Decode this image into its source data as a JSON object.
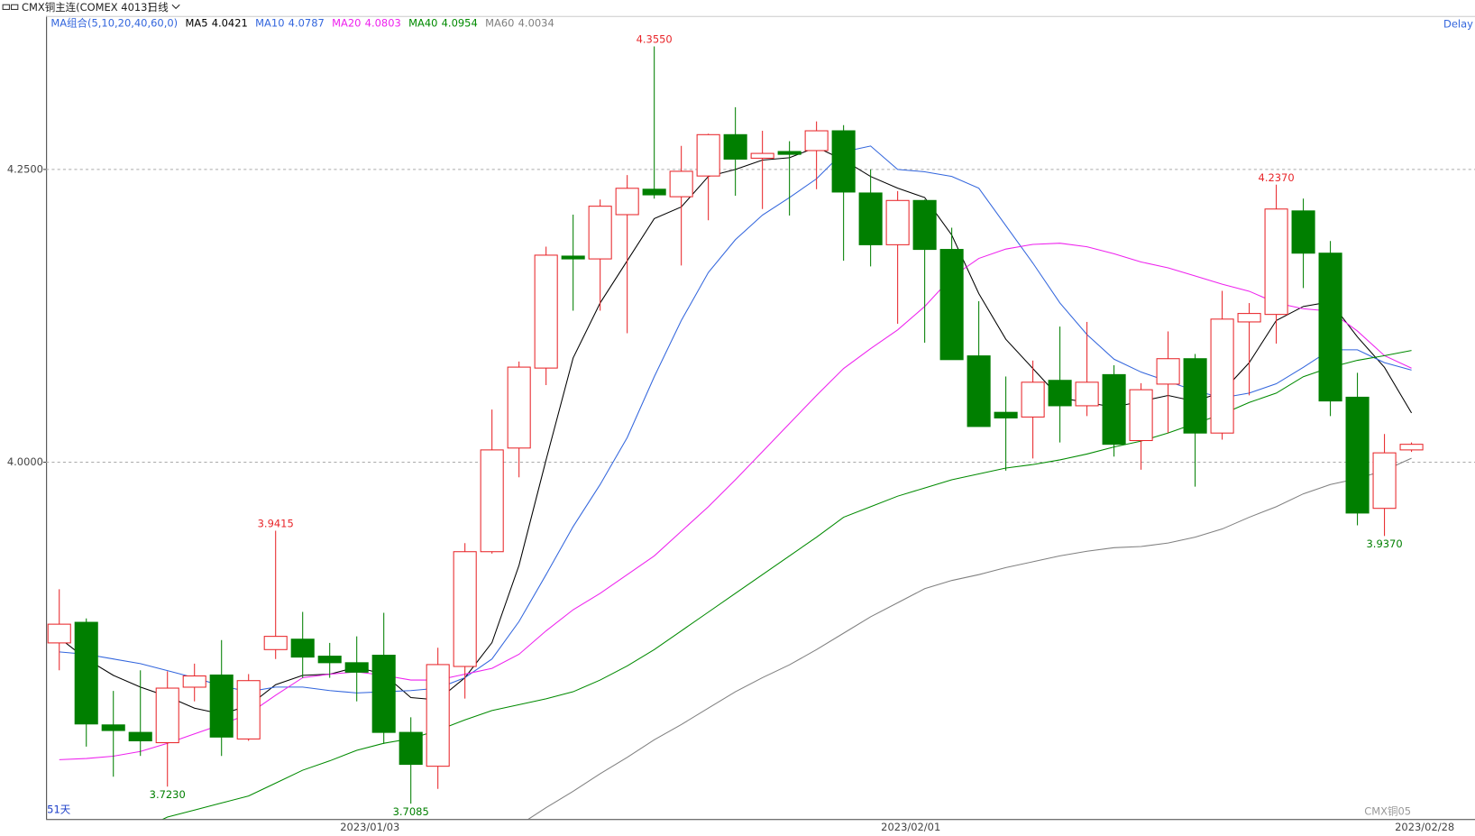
{
  "chart_data": {
    "type": "candlestick",
    "title": "CMX铜主连(COMEX 4013)",
    "period": "日线",
    "ma_label": "MA组合(5,10,20,40,60,0)",
    "day_count": "51天",
    "watermark": "CMX铜05",
    "delay": "Delay",
    "up_color": "#e8262a",
    "down_color": "#007f00",
    "categories": [
      null,
      null,
      null,
      null,
      null,
      null,
      null,
      null,
      null,
      null,
      null,
      "2023/01/03",
      null,
      null,
      null,
      null,
      null,
      null,
      null,
      null,
      null,
      null,
      null,
      null,
      null,
      null,
      null,
      null,
      null,
      null,
      null,
      "2023/02/01",
      null,
      null,
      null,
      null,
      null,
      null,
      null,
      null,
      null,
      null,
      null,
      null,
      null,
      null,
      null,
      null,
      null,
      null,
      "2023/02/28"
    ],
    "open": [
      3.8457,
      3.8633,
      3.7757,
      3.7693,
      3.7605,
      3.8079,
      3.8183,
      3.7637,
      3.84,
      3.8489,
      3.8344,
      3.8288,
      3.8352,
      3.7693,
      3.7404,
      3.8256,
      3.9236,
      4.0121,
      4.0804,
      4.176,
      4.1736,
      4.2114,
      4.2331,
      4.2267,
      4.2444,
      4.2797,
      4.2596,
      4.2653,
      4.2661,
      4.283,
      4.2299,
      4.1857,
      4.2235,
      4.1817,
      4.0908,
      4.0426,
      4.0386,
      4.0699,
      4.0482,
      4.0748,
      4.0185,
      4.0667,
      4.0884,
      4.0249,
      4.1198,
      4.1262,
      4.2146,
      4.1785,
      4.0555,
      3.9606,
      4.0105
    ],
    "high": [
      3.8915,
      3.8666,
      3.8047,
      3.8223,
      3.8215,
      3.828,
      3.8481,
      3.8191,
      3.9415,
      3.8722,
      3.8457,
      3.8513,
      3.8714,
      3.7822,
      3.8416,
      3.9309,
      4.045,
      4.086,
      4.1841,
      4.2114,
      4.2243,
      4.2452,
      4.355,
      4.2701,
      4.2805,
      4.3031,
      4.283,
      4.2741,
      4.291,
      4.2878,
      4.25,
      4.2315,
      4.2243,
      4.2002,
      4.1375,
      4.0732,
      4.0868,
      4.1158,
      4.1198,
      4.0828,
      4.0675,
      4.1117,
      4.0924,
      4.1463,
      4.1359,
      4.237,
      4.2251,
      4.1889,
      4.0764,
      4.0241,
      4.0169
    ],
    "low": [
      3.8223,
      3.7572,
      3.7315,
      3.7492,
      3.723,
      3.7958,
      3.7492,
      3.7621,
      3.832,
      3.8159,
      3.8159,
      3.7958,
      3.7596,
      3.7085,
      3.7211,
      3.7982,
      3.922,
      3.9871,
      4.0659,
      4.1294,
      4.1294,
      4.1101,
      4.2251,
      4.168,
      4.2066,
      4.2275,
      4.2162,
      4.2106,
      4.2331,
      4.172,
      4.1672,
      4.1182,
      4.1021,
      4.0876,
      4.0305,
      3.9928,
      4.0032,
      4.0169,
      4.0394,
      4.0048,
      3.9936,
      4.0249,
      3.9791,
      4.0193,
      4.0571,
      4.1013,
      4.1487,
      4.0394,
      3.9461,
      3.937,
      4.0088
    ],
    "close": [
      3.8617,
      3.7765,
      3.7709,
      3.7621,
      3.8071,
      3.8175,
      3.7653,
      3.8135,
      3.8513,
      3.8336,
      3.8288,
      3.8207,
      3.7693,
      3.742,
      3.8272,
      3.9236,
      4.0105,
      4.0812,
      4.1768,
      4.1736,
      4.2186,
      4.2339,
      4.2283,
      4.2484,
      4.2797,
      4.2588,
      4.2637,
      4.2629,
      4.283,
      4.2307,
      4.1857,
      4.2235,
      4.1817,
      4.0876,
      4.0305,
      4.0378,
      4.0683,
      4.0482,
      4.0683,
      4.0153,
      4.0619,
      4.0884,
      4.0249,
      4.1222,
      4.127,
      4.2162,
      4.1785,
      4.0523,
      3.9566,
      4.008,
      4.0153
    ],
    "high_labels": [
      null,
      null,
      null,
      null,
      null,
      null,
      null,
      null,
      "3.9415",
      null,
      null,
      null,
      null,
      null,
      null,
      null,
      null,
      null,
      null,
      null,
      null,
      null,
      "4.3550",
      null,
      null,
      null,
      null,
      null,
      null,
      null,
      null,
      null,
      null,
      null,
      null,
      null,
      null,
      null,
      null,
      null,
      null,
      null,
      null,
      null,
      null,
      "4.2370",
      null,
      null,
      null,
      null,
      null
    ],
    "low_labels": [
      null,
      null,
      null,
      null,
      "3.7230",
      null,
      null,
      null,
      null,
      null,
      null,
      null,
      null,
      "3.7085",
      null,
      null,
      null,
      null,
      null,
      null,
      null,
      null,
      null,
      null,
      null,
      null,
      null,
      null,
      null,
      null,
      null,
      null,
      null,
      null,
      null,
      null,
      null,
      null,
      null,
      null,
      null,
      null,
      null,
      null,
      null,
      null,
      null,
      null,
      null,
      "3.9370",
      null
    ],
    "series": [
      {
        "name": "MA5",
        "color": "#000000",
        "values": [
          3.85,
          3.832,
          3.818,
          3.808,
          3.8,
          3.79,
          3.785,
          3.792,
          3.81,
          3.818,
          3.819,
          3.825,
          3.819,
          3.799,
          3.797,
          3.816,
          3.846,
          3.912,
          4.002,
          4.089,
          4.136,
          4.172,
          4.208,
          4.218,
          4.244,
          4.25,
          4.258,
          4.26,
          4.269,
          4.258,
          4.244,
          4.234,
          4.226,
          4.194,
          4.144,
          4.105,
          4.08,
          4.055,
          4.051,
          4.047,
          4.052,
          4.057,
          4.052,
          4.06,
          4.085,
          4.121,
          4.133,
          4.137,
          4.107,
          4.081,
          4.0421
        ]
      },
      {
        "name": "MA10",
        "color": "#3366dd",
        "values": [
          3.838,
          3.836,
          3.832,
          3.828,
          3.822,
          3.816,
          3.809,
          3.804,
          3.808,
          3.808,
          3.805,
          3.803,
          3.804,
          3.805,
          3.807,
          3.816,
          3.832,
          3.864,
          3.904,
          3.945,
          3.981,
          4.021,
          4.073,
          4.121,
          4.162,
          4.19,
          4.211,
          4.226,
          4.242,
          4.265,
          4.27,
          4.25,
          4.248,
          4.244,
          4.234,
          4.202,
          4.17,
          4.136,
          4.109,
          4.088,
          4.077,
          4.069,
          4.061,
          4.055,
          4.059,
          4.067,
          4.081,
          4.096,
          4.096,
          4.085,
          4.0787
        ]
      },
      {
        "name": "MA20",
        "color": "#ee22ee",
        "values": [
          3.746,
          3.747,
          3.749,
          3.753,
          3.76,
          3.768,
          3.776,
          3.785,
          3.801,
          3.816,
          3.819,
          3.821,
          3.818,
          3.814,
          3.814,
          3.819,
          3.824,
          3.836,
          3.856,
          3.874,
          3.888,
          3.904,
          3.92,
          3.941,
          3.962,
          3.985,
          4.009,
          4.033,
          4.057,
          4.08,
          4.097,
          4.113,
          4.133,
          4.158,
          4.174,
          4.182,
          4.186,
          4.187,
          4.184,
          4.178,
          4.171,
          4.166,
          4.159,
          4.152,
          4.146,
          4.136,
          4.131,
          4.129,
          4.112,
          4.091,
          4.0803
        ]
      },
      {
        "name": "MA40",
        "color": "#008a00",
        "values": [
          3.667,
          3.673,
          3.679,
          3.686,
          3.697,
          3.703,
          3.709,
          3.715,
          3.726,
          3.737,
          3.745,
          3.754,
          3.76,
          3.764,
          3.771,
          3.78,
          3.788,
          3.793,
          3.798,
          3.804,
          3.814,
          3.826,
          3.84,
          3.856,
          3.872,
          3.888,
          3.904,
          3.92,
          3.936,
          3.953,
          3.962,
          3.971,
          3.978,
          3.985,
          3.99,
          3.995,
          3.998,
          4.002,
          4.007,
          4.013,
          4.018,
          4.025,
          4.033,
          4.041,
          4.051,
          4.059,
          4.073,
          4.081,
          4.087,
          4.091,
          4.0954
        ]
      },
      {
        "name": "MA60",
        "color": "#808080",
        "values": [
          null,
          null,
          null,
          null,
          null,
          null,
          null,
          null,
          null,
          null,
          null,
          null,
          null,
          null,
          null,
          null,
          null,
          3.69,
          3.705,
          3.719,
          3.734,
          3.748,
          3.763,
          3.776,
          3.79,
          3.804,
          3.816,
          3.827,
          3.84,
          3.854,
          3.868,
          3.88,
          3.892,
          3.899,
          3.904,
          3.91,
          3.915,
          3.92,
          3.924,
          3.927,
          3.928,
          3.931,
          3.936,
          3.943,
          3.953,
          3.962,
          3.973,
          3.981,
          3.986,
          3.993,
          4.0034
        ]
      }
    ],
    "ylim": [
      3.6953,
      4.3786
    ],
    "yticks": [
      {
        "value": 4.0,
        "label": "4.0000"
      },
      {
        "value": 4.25,
        "label": "4.2500"
      }
    ],
    "grid": true
  }
}
